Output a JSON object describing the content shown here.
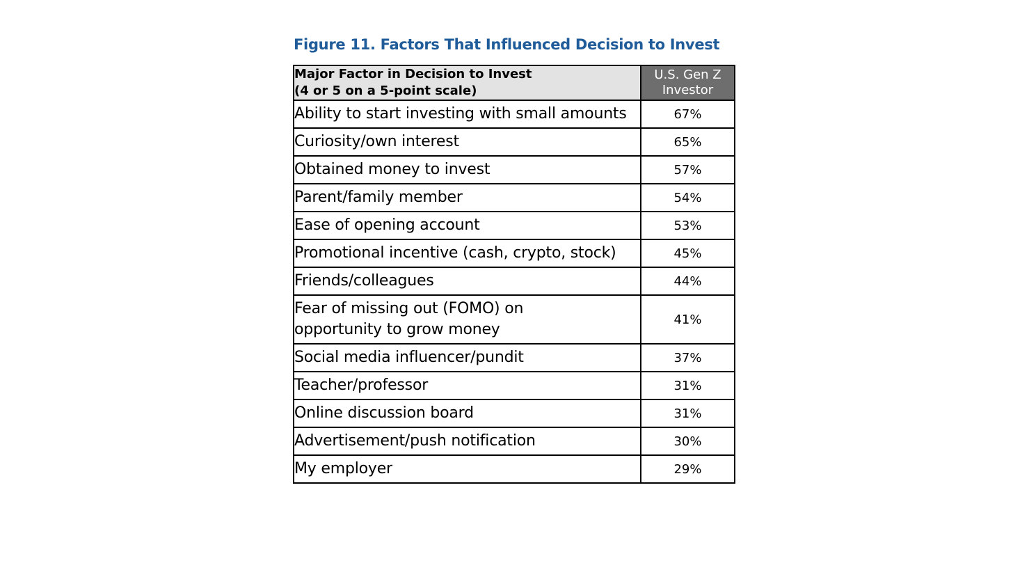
{
  "figure": {
    "title": "Figure 11. Factors That Influenced Decision to Invest"
  },
  "table": {
    "header": {
      "factor_line1": "Major Factor in Decision to Invest",
      "factor_line2": "(4 or 5 on a 5-point scale)",
      "investor_line1": "U.S. Gen Z",
      "investor_line2": "Investor"
    },
    "rows": [
      {
        "factor": "Ability to start investing with small amounts",
        "value": "67%"
      },
      {
        "factor": "Curiosity/own interest",
        "value": "65%"
      },
      {
        "factor": "Obtained money to invest",
        "value": "57%"
      },
      {
        "factor": "Parent/family member",
        "value": "54%"
      },
      {
        "factor": "Ease of opening account",
        "value": "53%"
      },
      {
        "factor": "Promotional incentive (cash, crypto, stock)",
        "value": "45%"
      },
      {
        "factor": "Friends/colleagues",
        "value": "44%"
      },
      {
        "factor_line1": "Fear of missing out (FOMO) on",
        "factor_line2": "opportunity to grow money",
        "value": "41%"
      },
      {
        "factor": "Social media influencer/pundit",
        "value": "37%"
      },
      {
        "factor": "Teacher/professor",
        "value": "31%"
      },
      {
        "factor": "Online discussion board",
        "value": "31%"
      },
      {
        "factor": "Advertisement/push notification",
        "value": "30%"
      },
      {
        "factor": "My employer",
        "value": "29%"
      }
    ]
  },
  "colors": {
    "title_blue": "#1f5c99",
    "header_left_bg": "#e3e3e3",
    "header_right_bg": "#6e6e6e"
  }
}
